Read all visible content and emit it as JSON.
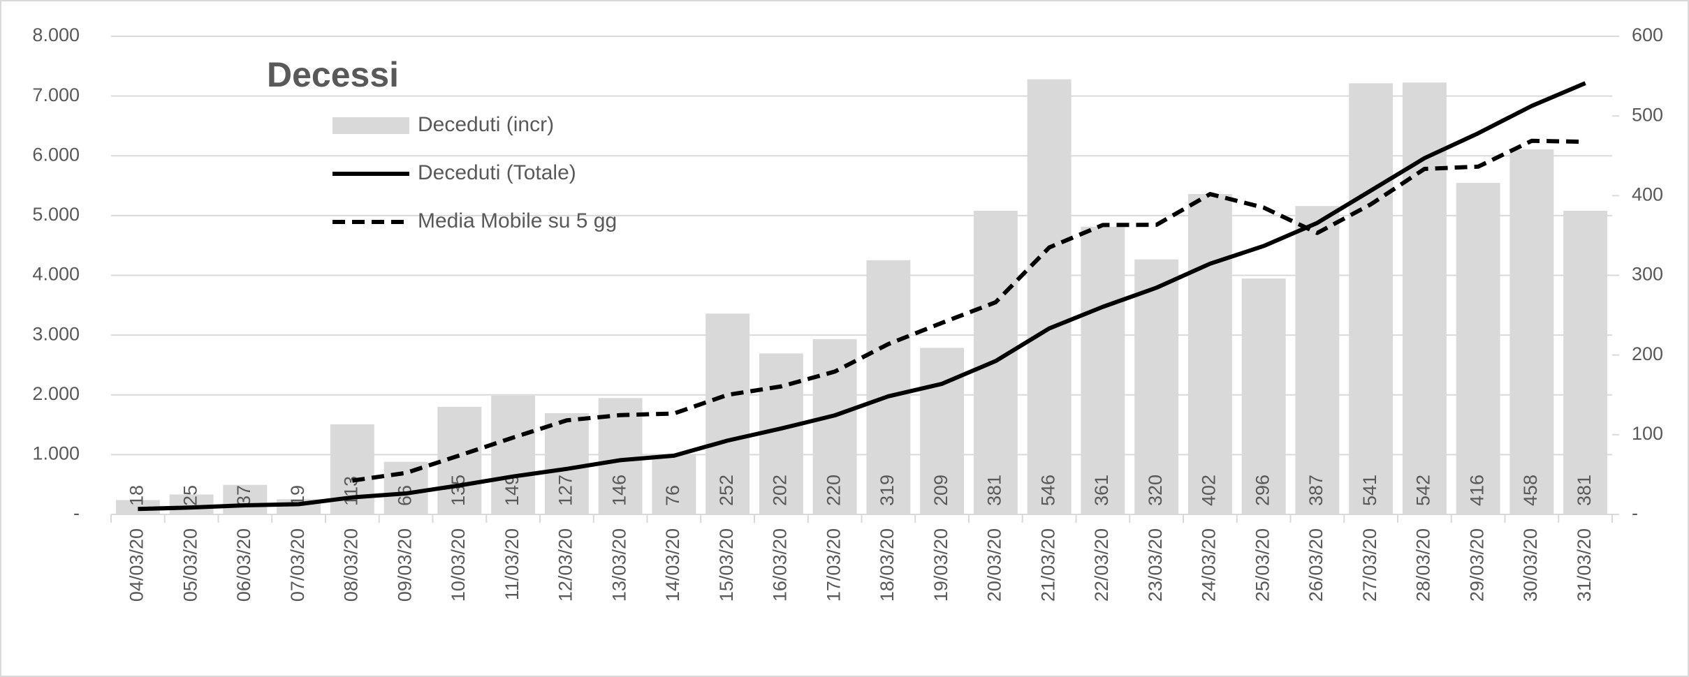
{
  "chart_data": {
    "type": "bar-line",
    "title": "Decessi",
    "categories": [
      "04/03/20",
      "05/03/20",
      "06/03/20",
      "07/03/20",
      "08/03/20",
      "09/03/20",
      "10/03/20",
      "11/03/20",
      "12/03/20",
      "13/03/20",
      "14/03/20",
      "15/03/20",
      "16/03/20",
      "17/03/20",
      "18/03/20",
      "19/03/20",
      "20/03/20",
      "21/03/20",
      "22/03/20",
      "23/03/20",
      "24/03/20",
      "25/03/20",
      "26/03/20",
      "27/03/20",
      "28/03/20",
      "29/03/20",
      "30/03/20",
      "31/03/20"
    ],
    "series": [
      {
        "name": "Deceduti (incr)",
        "type": "bar",
        "axis": "y2",
        "color": "#d9d9d9",
        "values": [
          18,
          25,
          37,
          19,
          113,
          66,
          135,
          149,
          127,
          146,
          76,
          252,
          202,
          220,
          319,
          209,
          381,
          546,
          361,
          320,
          402,
          296,
          387,
          541,
          542,
          416,
          458,
          381
        ]
      },
      {
        "name": "Deceduti (Totale)",
        "type": "line",
        "color": "#000000",
        "values": [
          90,
          115,
          152,
          171,
          284,
          350,
          485,
          634,
          761,
          907,
          983,
          1235,
          1437,
          1657,
          1976,
          2185,
          2566,
          3112,
          3473,
          3793,
          4195,
          4491,
          4878,
          5419,
          5961,
          6377,
          6835,
          7216
        ]
      },
      {
        "name": "Media Mobile su 5 gg",
        "type": "line",
        "dashed": true,
        "axis": "y2",
        "color": "#000000",
        "values": [
          null,
          null,
          null,
          null,
          42.4,
          52,
          74,
          96.4,
          118,
          124.6,
          126.6,
          150,
          160.6,
          179.2,
          213.8,
          240.4,
          266.2,
          335,
          363.2,
          363.4,
          402,
          385,
          353.2,
          389.2,
          433.6,
          436.4,
          468.8,
          467.6
        ]
      }
    ],
    "ylim": [
      0,
      8000
    ],
    "yticks": [
      {
        "value": 0,
        "label": "-"
      },
      {
        "value": 1000,
        "label": "1.000"
      },
      {
        "value": 2000,
        "label": "2.000"
      },
      {
        "value": 3000,
        "label": "3.000"
      },
      {
        "value": 4000,
        "label": "4.000"
      },
      {
        "value": 5000,
        "label": "5.000"
      },
      {
        "value": 6000,
        "label": "6.000"
      },
      {
        "value": 7000,
        "label": "7.000"
      },
      {
        "value": 8000,
        "label": "8.000"
      }
    ],
    "y2lim": [
      0,
      600
    ],
    "y2ticks": [
      {
        "value": 0,
        "label": "-"
      },
      100,
      200,
      300,
      400,
      500,
      600
    ],
    "grid": true
  }
}
